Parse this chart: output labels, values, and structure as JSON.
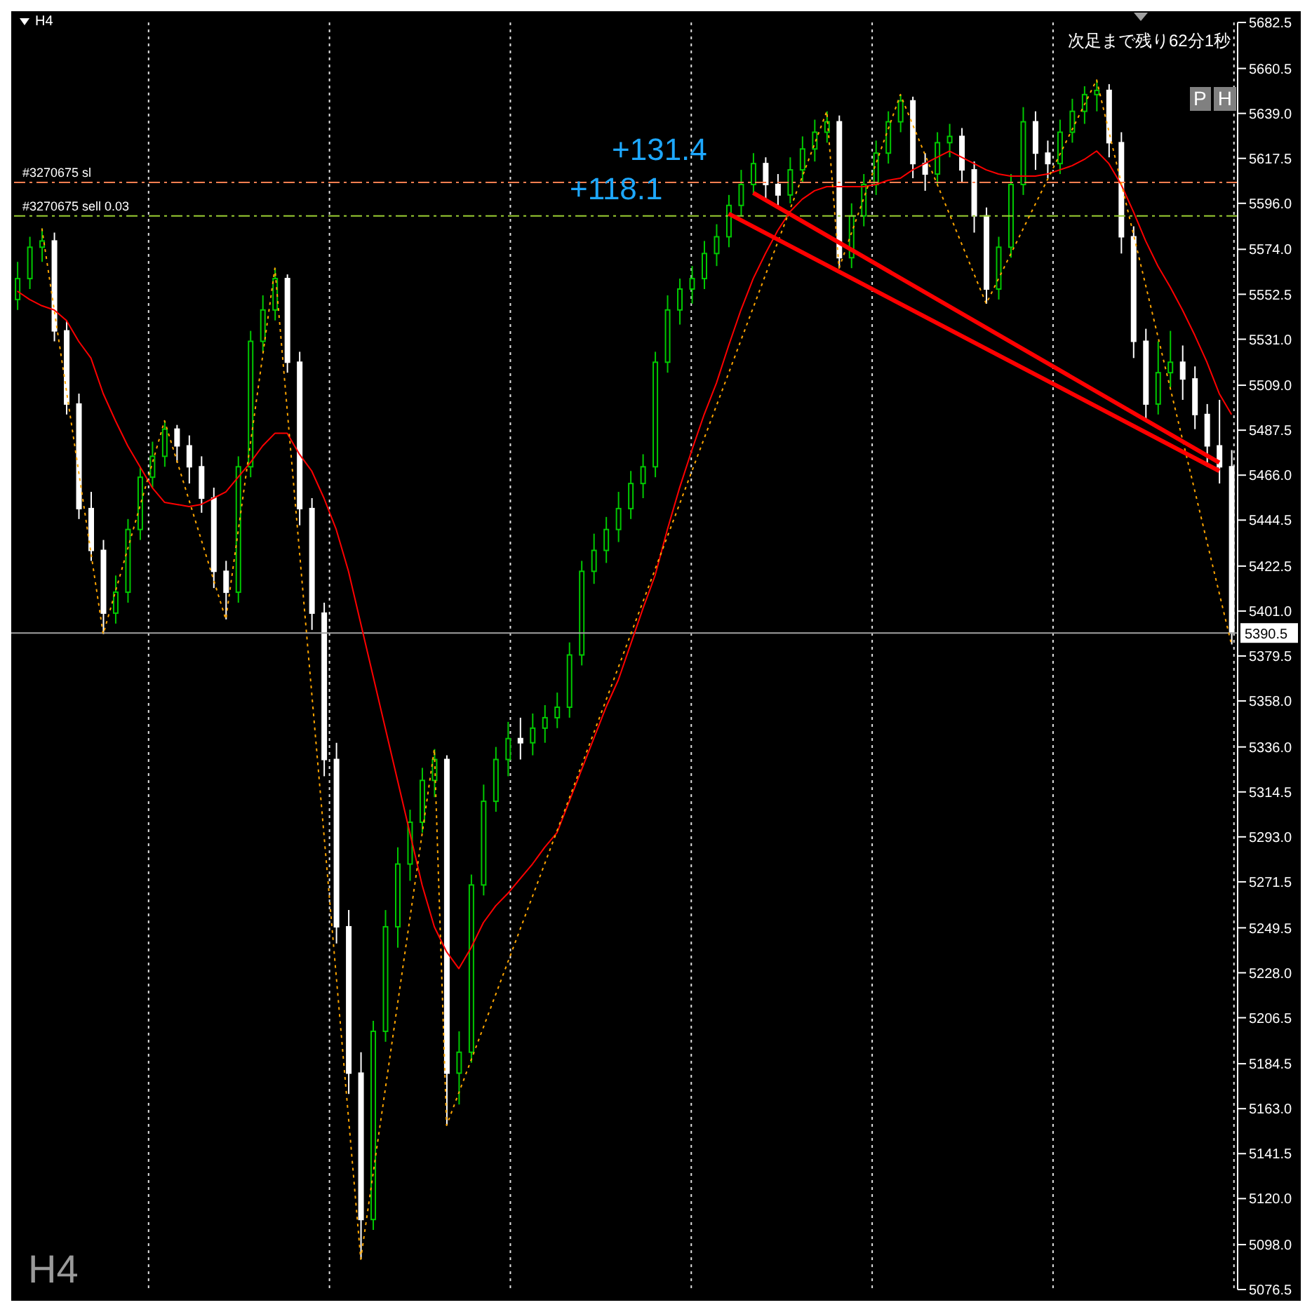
{
  "chart_data": {
    "type": "candlestick",
    "title": "H4",
    "subtitle": "H4",
    "categories": [
      null,
      null,
      null,
      null,
      null,
      null,
      null,
      null,
      null,
      null,
      null,
      null,
      null,
      null,
      null,
      null,
      null,
      null,
      null,
      null,
      null,
      null,
      null,
      null,
      null,
      null,
      null,
      null,
      null,
      null,
      null,
      null,
      null,
      null,
      null,
      null,
      null,
      null,
      null,
      null,
      null,
      null,
      null,
      null,
      null,
      null,
      null,
      null,
      null,
      null,
      null,
      null,
      null,
      null,
      null,
      null,
      null,
      null,
      null,
      null,
      null,
      null,
      null,
      null,
      null,
      null,
      null,
      null,
      null,
      null,
      null,
      null,
      null,
      null,
      null,
      null,
      null,
      null,
      null,
      null,
      null,
      null,
      null,
      null,
      null,
      null,
      null,
      null,
      null,
      null,
      null,
      null,
      null,
      null,
      null,
      null,
      null,
      null,
      null,
      null
    ],
    "ohlc": [
      [
        5550,
        5568,
        5545,
        5560
      ],
      [
        5560,
        5580,
        5555,
        5575
      ],
      [
        5575,
        5584,
        5568,
        5578
      ],
      [
        5578,
        5582,
        5530,
        5535
      ],
      [
        5535,
        5540,
        5495,
        5500
      ],
      [
        5500,
        5505,
        5445,
        5450
      ],
      [
        5450,
        5458,
        5425,
        5430
      ],
      [
        5430,
        5435,
        5390,
        5400
      ],
      [
        5400,
        5418,
        5395,
        5410
      ],
      [
        5410,
        5445,
        5405,
        5440
      ],
      [
        5440,
        5470,
        5435,
        5465
      ],
      [
        5465,
        5482,
        5460,
        5475
      ],
      [
        5475,
        5492,
        5470,
        5488
      ],
      [
        5488,
        5490,
        5472,
        5480
      ],
      [
        5480,
        5485,
        5462,
        5470
      ],
      [
        5470,
        5475,
        5448,
        5455
      ],
      [
        5455,
        5460,
        5412,
        5420
      ],
      [
        5420,
        5425,
        5397,
        5410
      ],
      [
        5410,
        5475,
        5405,
        5470
      ],
      [
        5470,
        5535,
        5465,
        5530
      ],
      [
        5530,
        5552,
        5525,
        5545
      ],
      [
        5545,
        5565,
        5540,
        5560
      ],
      [
        5560,
        5562,
        5515,
        5520
      ],
      [
        5520,
        5525,
        5442,
        5450
      ],
      [
        5450,
        5455,
        5392,
        5400
      ],
      [
        5400,
        5405,
        5322,
        5330
      ],
      [
        5330,
        5338,
        5242,
        5250
      ],
      [
        5250,
        5258,
        5170,
        5180
      ],
      [
        5180,
        5190,
        5091,
        5110
      ],
      [
        5110,
        5205,
        5105,
        5200
      ],
      [
        5200,
        5258,
        5195,
        5250
      ],
      [
        5250,
        5288,
        5240,
        5280
      ],
      [
        5280,
        5306,
        5272,
        5300
      ],
      [
        5300,
        5326,
        5295,
        5320
      ],
      [
        5320,
        5335,
        5312,
        5330
      ],
      [
        5330,
        5332,
        5155,
        5180
      ],
      [
        5180,
        5200,
        5165,
        5190
      ],
      [
        5190,
        5275,
        5185,
        5270
      ],
      [
        5270,
        5318,
        5265,
        5310
      ],
      [
        5310,
        5336,
        5305,
        5330
      ],
      [
        5330,
        5348,
        5322,
        5340
      ],
      [
        5340,
        5350,
        5330,
        5338
      ],
      [
        5338,
        5352,
        5332,
        5345
      ],
      [
        5345,
        5356,
        5338,
        5350
      ],
      [
        5350,
        5362,
        5345,
        5355
      ],
      [
        5355,
        5386,
        5350,
        5380
      ],
      [
        5380,
        5425,
        5375,
        5420
      ],
      [
        5420,
        5438,
        5414,
        5430
      ],
      [
        5430,
        5446,
        5424,
        5440
      ],
      [
        5440,
        5458,
        5434,
        5450
      ],
      [
        5450,
        5468,
        5445,
        5462
      ],
      [
        5462,
        5476,
        5455,
        5470
      ],
      [
        5470,
        5525,
        5465,
        5520
      ],
      [
        5520,
        5552,
        5515,
        5545
      ],
      [
        5545,
        5560,
        5538,
        5555
      ],
      [
        5555,
        5566,
        5548,
        5560
      ],
      [
        5560,
        5578,
        5555,
        5572
      ],
      [
        5572,
        5586,
        5566,
        5580
      ],
      [
        5580,
        5600,
        5575,
        5595
      ],
      [
        5595,
        5612,
        5590,
        5605
      ],
      [
        5605,
        5620,
        5600,
        5615
      ],
      [
        5615,
        5618,
        5598,
        5605
      ],
      [
        5605,
        5610,
        5594,
        5600
      ],
      [
        5600,
        5618,
        5596,
        5612
      ],
      [
        5612,
        5628,
        5606,
        5622
      ],
      [
        5622,
        5636,
        5616,
        5630
      ],
      [
        5630,
        5640,
        5625,
        5635
      ],
      [
        5635,
        5638,
        5565,
        5570
      ],
      [
        5570,
        5596,
        5565,
        5590
      ],
      [
        5590,
        5610,
        5585,
        5605
      ],
      [
        5605,
        5626,
        5600,
        5620
      ],
      [
        5620,
        5640,
        5615,
        5635
      ],
      [
        5635,
        5648,
        5630,
        5645
      ],
      [
        5645,
        5647,
        5608,
        5615
      ],
      [
        5615,
        5620,
        5602,
        5610
      ],
      [
        5610,
        5630,
        5605,
        5625
      ],
      [
        5625,
        5634,
        5618,
        5628
      ],
      [
        5628,
        5632,
        5606,
        5612
      ],
      [
        5612,
        5616,
        5582,
        5590
      ],
      [
        5590,
        5594,
        5548,
        5555
      ],
      [
        5555,
        5580,
        5550,
        5575
      ],
      [
        5575,
        5610,
        5570,
        5605
      ],
      [
        5605,
        5642,
        5600,
        5635
      ],
      [
        5635,
        5640,
        5612,
        5620
      ],
      [
        5620,
        5626,
        5608,
        5615
      ],
      [
        5615,
        5636,
        5610,
        5630
      ],
      [
        5630,
        5646,
        5625,
        5640
      ],
      [
        5640,
        5652,
        5634,
        5648
      ],
      [
        5648,
        5655,
        5640,
        5650
      ],
      [
        5650,
        5653,
        5618,
        5625
      ],
      [
        5625,
        5630,
        5572,
        5580
      ],
      [
        5580,
        5585,
        5522,
        5530
      ],
      [
        5530,
        5536,
        5492,
        5500
      ],
      [
        5500,
        5530,
        5495,
        5515
      ],
      [
        5515,
        5535,
        5508,
        5520
      ],
      [
        5520,
        5528,
        5502,
        5512
      ],
      [
        5512,
        5518,
        5488,
        5495
      ],
      [
        5495,
        5500,
        5470,
        5480
      ],
      [
        5480,
        5502,
        5462,
        5470
      ],
      [
        5470,
        5478,
        5385,
        5390.5
      ]
    ],
    "series": [
      {
        "type": "line",
        "color": "#ff0000",
        "values": [
          5554,
          5550,
          5547,
          5545,
          5540,
          5530,
          5522,
          5505,
          5492,
          5480,
          5470,
          5460,
          5453,
          5452,
          5451,
          5452,
          5455,
          5458,
          5465,
          5472,
          5480,
          5486,
          5486,
          5476,
          5468,
          5455,
          5440,
          5420,
          5395,
          5370,
          5345,
          5320,
          5295,
          5270,
          5250,
          5238,
          5230,
          5240,
          5252,
          5260,
          5266,
          5273,
          5280,
          5288,
          5295,
          5310,
          5325,
          5340,
          5355,
          5368,
          5385,
          5402,
          5418,
          5440,
          5460,
          5478,
          5495,
          5510,
          5528,
          5545,
          5560,
          5572,
          5583,
          5592,
          5598,
          5602,
          5604,
          5604,
          5604,
          5604,
          5605,
          5607,
          5608,
          5612,
          5615,
          5618,
          5621,
          5618,
          5615,
          5612,
          5610,
          5609,
          5609,
          5609,
          5610,
          5612,
          5614,
          5617,
          5621,
          5615,
          5605,
          5592,
          5578,
          5566,
          5556,
          5545,
          5533,
          5520,
          5505,
          5495
        ]
      },
      {
        "type": "line",
        "color": "#ffa500",
        "line_style": "dotted",
        "values": [
          null,
          null,
          5584,
          null,
          null,
          null,
          null,
          5390,
          null,
          null,
          null,
          null,
          5492,
          null,
          null,
          null,
          null,
          5397,
          null,
          null,
          null,
          5565,
          null,
          null,
          null,
          null,
          null,
          null,
          5091,
          null,
          null,
          null,
          null,
          null,
          5335,
          5155,
          null,
          null,
          null,
          null,
          null,
          null,
          null,
          null,
          null,
          null,
          null,
          null,
          null,
          null,
          null,
          null,
          null,
          null,
          null,
          null,
          null,
          null,
          null,
          null,
          null,
          null,
          null,
          null,
          null,
          null,
          5640,
          5565,
          null,
          null,
          null,
          null,
          5648,
          null,
          null,
          null,
          null,
          null,
          null,
          5548,
          null,
          null,
          null,
          null,
          null,
          null,
          null,
          null,
          5655,
          null,
          null,
          null,
          null,
          null,
          null,
          null,
          null,
          null,
          null,
          5385
        ]
      },
      {
        "type": "line",
        "color": "#ff0000",
        "values": [
          null,
          null,
          null,
          null,
          null,
          null,
          null,
          null,
          null,
          null,
          null,
          null,
          null,
          null,
          null,
          null,
          null,
          null,
          null,
          null,
          null,
          null,
          null,
          null,
          null,
          null,
          null,
          null,
          null,
          null,
          null,
          null,
          null,
          null,
          null,
          null,
          null,
          null,
          null,
          null,
          null,
          null,
          null,
          null,
          null,
          null,
          null,
          null,
          null,
          null,
          null,
          null,
          null,
          null,
          null,
          null,
          null,
          null,
          null,
          null,
          5601,
          null,
          null,
          null,
          null,
          null,
          null,
          null,
          null,
          null,
          null,
          null,
          null,
          null,
          null,
          null,
          null,
          null,
          null,
          null,
          null,
          null,
          null,
          null,
          null,
          null,
          null,
          null,
          null,
          null,
          null,
          null,
          null,
          null,
          null,
          null,
          null,
          null,
          5472,
          null
        ]
      },
      {
        "type": "line",
        "color": "#ff0000",
        "values": [
          null,
          null,
          null,
          null,
          null,
          null,
          null,
          null,
          null,
          null,
          null,
          null,
          null,
          null,
          null,
          null,
          null,
          null,
          null,
          null,
          null,
          null,
          null,
          null,
          null,
          null,
          null,
          null,
          null,
          null,
          null,
          null,
          null,
          null,
          null,
          null,
          null,
          null,
          null,
          null,
          null,
          null,
          null,
          null,
          null,
          null,
          null,
          null,
          null,
          null,
          null,
          null,
          null,
          null,
          null,
          null,
          null,
          null,
          5591,
          null,
          null,
          null,
          null,
          null,
          null,
          null,
          null,
          null,
          null,
          null,
          null,
          null,
          null,
          null,
          null,
          null,
          null,
          null,
          null,
          null,
          null,
          null,
          null,
          null,
          null,
          null,
          null,
          null,
          null,
          null,
          null,
          null,
          null,
          null,
          null,
          null,
          null,
          null,
          5468,
          null
        ]
      }
    ],
    "ylim": [
      5076.5,
      5682.5
    ],
    "yticks": [
      5682.5,
      5660.5,
      {
        "value": 5639,
        "label": "5639.0"
      },
      5617.5,
      {
        "value": 5596,
        "label": "5596.0"
      },
      {
        "value": 5574,
        "label": "5574.0"
      },
      5552.5,
      {
        "value": 5531,
        "label": "5531.0"
      },
      {
        "value": 5509,
        "label": "5509.0"
      },
      5487.5,
      {
        "value": 5466,
        "label": "5466.0"
      },
      5444.5,
      5422.5,
      {
        "value": 5401,
        "label": "5401.0"
      },
      5379.5,
      {
        "value": 5358,
        "label": "5358.0"
      },
      {
        "value": 5336,
        "label": "5336.0"
      },
      5314.5,
      {
        "value": 5293,
        "label": "5293.0"
      },
      5271.5,
      5249.5,
      {
        "value": 5228,
        "label": "5228.0"
      },
      5206.5,
      5184.5,
      {
        "value": 5163,
        "label": "5163.0"
      },
      5141.5,
      {
        "value": 5120,
        "label": "5120.0"
      },
      {
        "value": 5098,
        "label": "5098.0"
      },
      5076.5
    ],
    "tick_labels": "y",
    "grid": "x",
    "marker": "none",
    "ref_lines": [
      {
        "axis": "y",
        "value": 5606,
        "label": "#3270675 sl",
        "color": "#ff7f50",
        "line_style": "dashed"
      },
      {
        "axis": "y",
        "value": 5590,
        "label": "#3270675 sell 0.03",
        "color": "#9acd32",
        "line_style": "dashed"
      },
      {
        "axis": "y",
        "value": 5390.5,
        "label": "5390.5",
        "color": "#a0a0a0",
        "line_style": "solid"
      }
    ],
    "annotations": [
      "+131.4",
      "+118.1",
      "次足まで残り62分1秒",
      "P",
      "H"
    ]
  }
}
